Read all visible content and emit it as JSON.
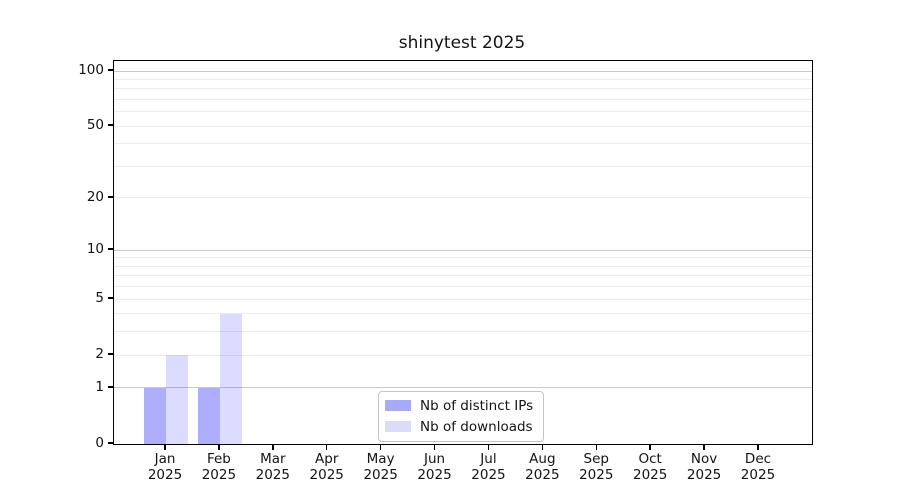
{
  "chart": {
    "title": "shinytest 2025"
  },
  "chart_data": {
    "type": "bar",
    "title": "shinytest 2025",
    "categories": [
      "Jan",
      "Feb",
      "Mar",
      "Apr",
      "May",
      "Jun",
      "Jul",
      "Aug",
      "Sep",
      "Oct",
      "Nov",
      "Dec"
    ],
    "category_year_label": "2025",
    "series": [
      {
        "name": "Nb of distinct IPs",
        "values": [
          1,
          1,
          0,
          0,
          0,
          0,
          0,
          0,
          0,
          0,
          0,
          0
        ],
        "swatch_hex": "#a9a9f9",
        "bar_rgba": "rgba(30,30,246,0.36)"
      },
      {
        "name": "Nb of downloads",
        "values": [
          2,
          4,
          0,
          0,
          0,
          0,
          0,
          0,
          0,
          0,
          0,
          0
        ],
        "swatch_hex": "#dcdcfa",
        "bar_rgba": "rgba(30,30,246,0.155)"
      }
    ],
    "xlabel": "",
    "ylabel": "",
    "yscale": "log1p",
    "ylim": [
      0,
      100
    ],
    "yticks": [
      100,
      50,
      20,
      10,
      5,
      2,
      1,
      0
    ],
    "grid": {
      "on": true,
      "minor_values": [
        2,
        3,
        4,
        5,
        6,
        7,
        8,
        9,
        20,
        30,
        40,
        50,
        60,
        70,
        80,
        90
      ],
      "major_values": [
        1,
        10,
        100
      ],
      "minor_color": "#ececec",
      "major_color": "#c9c9c9"
    },
    "legend_position": "inside-bottom-center",
    "frame_color": "#000000",
    "background_color": "#ffffff"
  }
}
